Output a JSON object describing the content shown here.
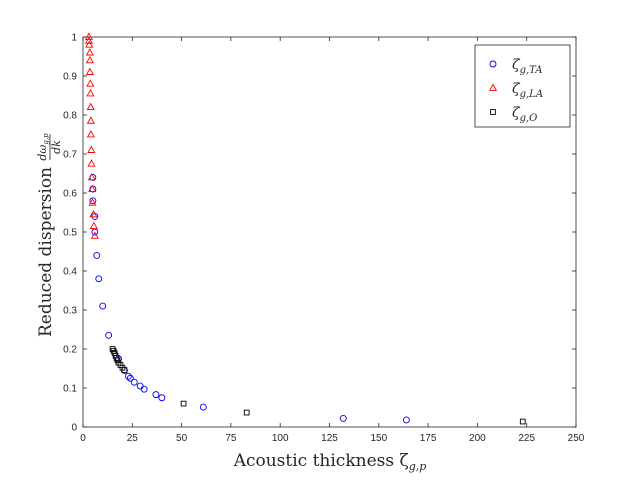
{
  "chart_data": {
    "type": "scatter",
    "title": "",
    "xlabel": "Acoustic thickness ζ",
    "xlabel_sub": "g,p",
    "ylabel": "Reduced dispersion",
    "ylabel_frac_num": "dω",
    "ylabel_frac_num_sub": "g,p",
    "ylabel_frac_den": "dk",
    "xlim": [
      0,
      250
    ],
    "ylim": [
      0,
      1
    ],
    "xticks": [
      "0",
      "25",
      "50",
      "75",
      "100",
      "125",
      "150",
      "175",
      "200",
      "225",
      "250"
    ],
    "yticks": [
      "0",
      "0.1",
      "0.2",
      "0.3",
      "0.4",
      "0.5",
      "0.6",
      "0.7",
      "0.8",
      "0.9",
      "1"
    ],
    "grid": false,
    "legend_position": "top-right",
    "series": [
      {
        "name": "ζ",
        "subscript": "g,TA",
        "marker": "circle",
        "color": "#0000ff",
        "points": [
          [
            5,
            0.64
          ],
          [
            5,
            0.61
          ],
          [
            5,
            0.58
          ],
          [
            6,
            0.54
          ],
          [
            6,
            0.5
          ],
          [
            7,
            0.44
          ],
          [
            8,
            0.38
          ],
          [
            10,
            0.31
          ],
          [
            13,
            0.235
          ],
          [
            18,
            0.175
          ],
          [
            21,
            0.145
          ],
          [
            23,
            0.13
          ],
          [
            24,
            0.125
          ],
          [
            26,
            0.115
          ],
          [
            29,
            0.105
          ],
          [
            31,
            0.097
          ],
          [
            37,
            0.083
          ],
          [
            40,
            0.075
          ],
          [
            61,
            0.051
          ],
          [
            132,
            0.022
          ],
          [
            164,
            0.018
          ]
        ]
      },
      {
        "name": "ζ",
        "subscript": "g,LA",
        "marker": "triangle",
        "color": "#ff0000",
        "points": [
          [
            3,
            1.0
          ],
          [
            3,
            0.99
          ],
          [
            3.2,
            0.98
          ],
          [
            3.5,
            0.96
          ],
          [
            3.5,
            0.94
          ],
          [
            3.5,
            0.91
          ],
          [
            3.7,
            0.88
          ],
          [
            3.8,
            0.855
          ],
          [
            3.9,
            0.82
          ],
          [
            4,
            0.785
          ],
          [
            4,
            0.75
          ],
          [
            4.2,
            0.71
          ],
          [
            4.3,
            0.675
          ],
          [
            4.5,
            0.64
          ],
          [
            4.7,
            0.61
          ],
          [
            4.8,
            0.575
          ],
          [
            5.3,
            0.545
          ],
          [
            5.5,
            0.515
          ],
          [
            6,
            0.49
          ]
        ]
      },
      {
        "name": "ζ",
        "subscript": "g,O",
        "marker": "square",
        "color": "#000000",
        "points": [
          [
            15,
            0.2
          ],
          [
            15.5,
            0.195
          ],
          [
            16,
            0.19
          ],
          [
            16.5,
            0.183
          ],
          [
            17,
            0.177
          ],
          [
            17.5,
            0.171
          ],
          [
            18,
            0.165
          ],
          [
            19,
            0.159
          ],
          [
            20,
            0.152
          ],
          [
            21,
            0.146
          ],
          [
            51,
            0.06
          ],
          [
            83,
            0.037
          ],
          [
            223,
            0.014
          ]
        ]
      }
    ]
  }
}
